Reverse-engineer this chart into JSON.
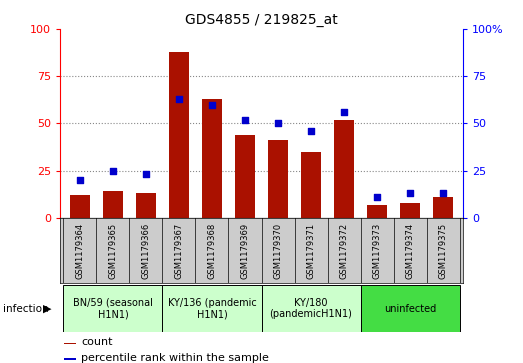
{
  "title": "GDS4855 / 219825_at",
  "samples": [
    "GSM1179364",
    "GSM1179365",
    "GSM1179366",
    "GSM1179367",
    "GSM1179368",
    "GSM1179369",
    "GSM1179370",
    "GSM1179371",
    "GSM1179372",
    "GSM1179373",
    "GSM1179374",
    "GSM1179375"
  ],
  "counts": [
    12,
    14,
    13,
    88,
    63,
    44,
    41,
    35,
    52,
    7,
    8,
    11
  ],
  "percentiles": [
    20,
    25,
    23,
    63,
    60,
    52,
    50,
    46,
    56,
    11,
    13,
    13
  ],
  "bar_color": "#aa1100",
  "dot_color": "#0000cc",
  "ylim": [
    0,
    100
  ],
  "yticks": [
    0,
    25,
    50,
    75,
    100
  ],
  "groups": [
    {
      "label": "BN/59 (seasonal\nH1N1)",
      "start": 0,
      "end": 3,
      "color": "#ccffcc"
    },
    {
      "label": "KY/136 (pandemic\nH1N1)",
      "start": 3,
      "end": 6,
      "color": "#ccffcc"
    },
    {
      "label": "KY/180\n(pandemicH1N1)",
      "start": 6,
      "end": 9,
      "color": "#ccffcc"
    },
    {
      "label": "uninfected",
      "start": 9,
      "end": 12,
      "color": "#44dd44"
    }
  ],
  "infection_label": "infection",
  "legend_count_label": "count",
  "legend_percentile_label": "percentile rank within the sample",
  "sample_bg_color": "#cccccc",
  "grid_color": "#888888"
}
